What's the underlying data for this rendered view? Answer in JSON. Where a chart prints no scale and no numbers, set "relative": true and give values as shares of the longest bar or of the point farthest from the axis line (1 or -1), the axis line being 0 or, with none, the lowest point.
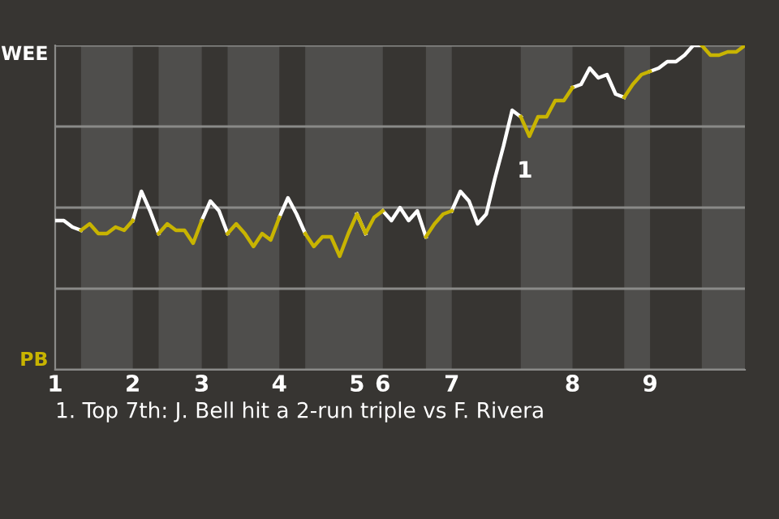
{
  "chart_data": {
    "type": "line",
    "relative": true,
    "categories": [
      "1",
      null,
      null,
      null,
      null,
      null,
      null,
      null,
      null,
      "2",
      null,
      null,
      null,
      null,
      null,
      null,
      null,
      "3",
      null,
      null,
      null,
      null,
      null,
      null,
      null,
      null,
      "4",
      null,
      null,
      null,
      null,
      null,
      null,
      null,
      null,
      "5",
      null,
      null,
      "6",
      null,
      null,
      null,
      null,
      null,
      null,
      null,
      "7",
      null,
      null,
      null,
      null,
      null,
      null,
      null,
      null,
      null,
      null,
      null,
      null,
      null,
      "8",
      null,
      null,
      null,
      null,
      null,
      null,
      null,
      null,
      "9",
      null,
      null,
      null,
      null,
      null,
      null,
      null,
      null,
      null,
      null,
      null
    ],
    "series": [
      {
        "color": "#ffffff",
        "values": [
          0.46,
          0.46,
          0.44,
          0.43,
          null,
          null,
          null,
          null,
          null,
          0.46,
          0.55,
          0.49,
          0.42,
          null,
          null,
          null,
          null,
          0.46,
          0.52,
          0.49,
          0.42,
          null,
          null,
          null,
          null,
          null,
          0.47,
          0.53,
          0.48,
          0.42,
          null,
          null,
          null,
          null,
          null,
          0.48,
          0.42,
          null,
          0.49,
          0.46,
          0.5,
          0.46,
          0.49,
          0.41,
          null,
          null,
          0.49,
          0.55,
          0.52,
          0.45,
          0.48,
          0.59,
          0.69,
          0.8,
          0.78,
          null,
          null,
          null,
          null,
          null,
          0.87,
          0.88,
          0.93,
          0.9,
          0.91,
          0.85,
          0.84,
          null,
          null,
          0.92,
          0.93,
          0.95,
          0.95,
          0.97,
          1.0,
          1.0,
          null,
          null,
          null,
          null,
          null
        ]
      },
      {
        "color": "#c8b400",
        "values": [
          null,
          null,
          null,
          0.43,
          0.45,
          0.42,
          0.42,
          0.44,
          0.43,
          0.46,
          null,
          null,
          0.42,
          0.45,
          0.43,
          0.43,
          0.39,
          0.46,
          null,
          null,
          0.42,
          0.45,
          0.42,
          0.38,
          0.42,
          0.4,
          0.47,
          null,
          null,
          0.42,
          0.38,
          0.41,
          0.41,
          0.35,
          0.42,
          0.48,
          0.42,
          0.47,
          0.49,
          null,
          null,
          null,
          null,
          0.41,
          0.45,
          0.48,
          0.49,
          null,
          null,
          null,
          null,
          null,
          null,
          null,
          0.78,
          0.72,
          0.78,
          0.78,
          0.83,
          0.83,
          0.87,
          null,
          null,
          null,
          null,
          null,
          0.84,
          0.88,
          0.91,
          0.92,
          null,
          null,
          null,
          null,
          null,
          1.0,
          0.97,
          0.97,
          0.98,
          0.98,
          1.0
        ]
      }
    ],
    "grid": "y",
    "marker": "none",
    "line_style": "solid",
    "annotations": [
      "WEE",
      "PB",
      "1",
      "1. Top 7th: J. Bell hit a 2-run triple vs F. Rivera"
    ]
  }
}
